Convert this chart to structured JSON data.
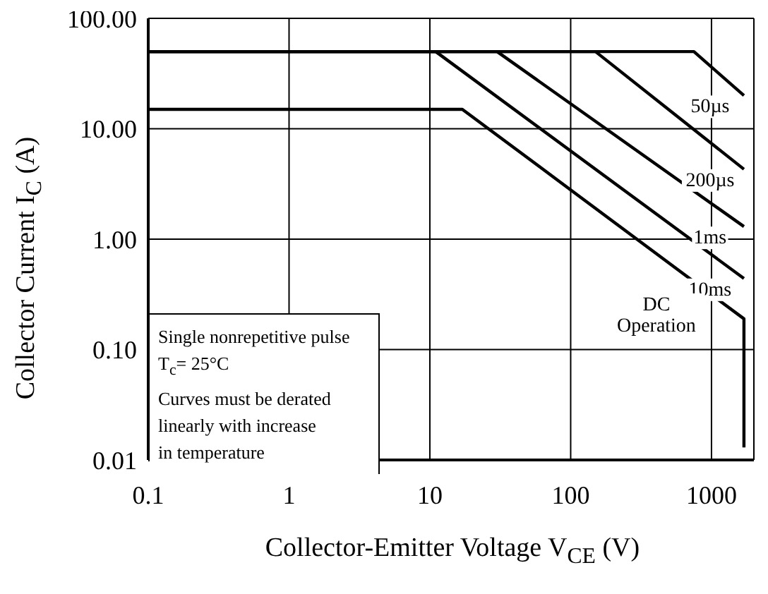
{
  "chart_data": {
    "type": "line",
    "xlabel": "Collector-Emitter Voltage  V$_{CE}$ (V)",
    "ylabel": "Collector Current  I$_{C}$ (A)",
    "log": "xy",
    "grid": true,
    "legend": false,
    "marker": "none",
    "line_style": "solid",
    "xlim": [
      0.1,
      2000
    ],
    "xticks": [
      0.1,
      1,
      10,
      100,
      1000
    ],
    "ylim": [
      0.01,
      100
    ],
    "yticks": [
      {
        "value": 0.01,
        "label": "0.01"
      },
      {
        "value": 0.1,
        "label": "0.10"
      },
      {
        "value": 1,
        "label": "1.00"
      },
      {
        "value": 10,
        "label": "10.00"
      },
      {
        "value": 100,
        "label": "100.00"
      }
    ],
    "series": [
      {
        "name": "50µs",
        "color": "#000000",
        "x": [
          0.1,
          750,
          1700
        ],
        "values": [
          50,
          50,
          20
        ]
      },
      {
        "name": "200µs",
        "color": "#000000",
        "x": [
          0.1,
          150,
          1700
        ],
        "values": [
          50,
          50,
          4.3
        ]
      },
      {
        "name": "1ms",
        "color": "#000000",
        "x": [
          0.1,
          30,
          1700
        ],
        "values": [
          50,
          50,
          1.3
        ]
      },
      {
        "name": "10ms",
        "color": "#000000",
        "x": [
          0.1,
          11,
          1700
        ],
        "values": [
          50,
          50,
          0.44
        ]
      },
      {
        "name": "DC\nOperation",
        "color": "#000000",
        "x": [
          0.1,
          17,
          1700,
          1700
        ],
        "values": [
          15,
          15,
          0.19,
          0.013
        ]
      }
    ],
    "annotations": [
      "Single nonrepetitive pulse\nT$_{c}$= 25°C\nCurves must be derated\nlinearly with increase\nin temperature"
    ]
  }
}
